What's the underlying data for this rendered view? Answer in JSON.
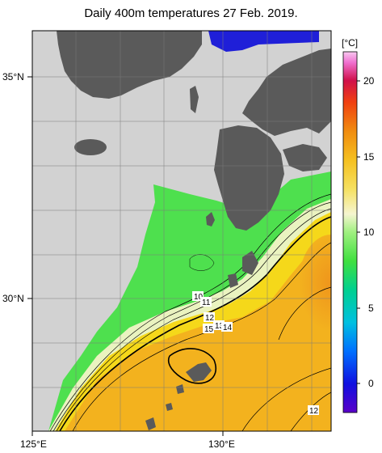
{
  "title": "Daily 400m temperatures 27 Feb. 2019.",
  "axes": {
    "lat_labels": [
      "35°N",
      "30°N"
    ],
    "lon_labels": [
      "125°E",
      "130°E"
    ]
  },
  "colorbar": {
    "unit": "[°C]",
    "ticks": [
      "20",
      "15",
      "10",
      "5",
      "0"
    ]
  },
  "contour_labels": [
    "10",
    "11",
    "12",
    "13",
    "14",
    "15",
    "12"
  ],
  "colors": {
    "land": "#5a5a5a",
    "no_data": "#d2d2d2",
    "cold": "#1f1fd8",
    "green": "#4ee04e",
    "pale": "#eaf3c0",
    "yellow": "#f5d81a",
    "orange": "#f3b21e",
    "deep_orange": "#ef9a1e"
  }
}
